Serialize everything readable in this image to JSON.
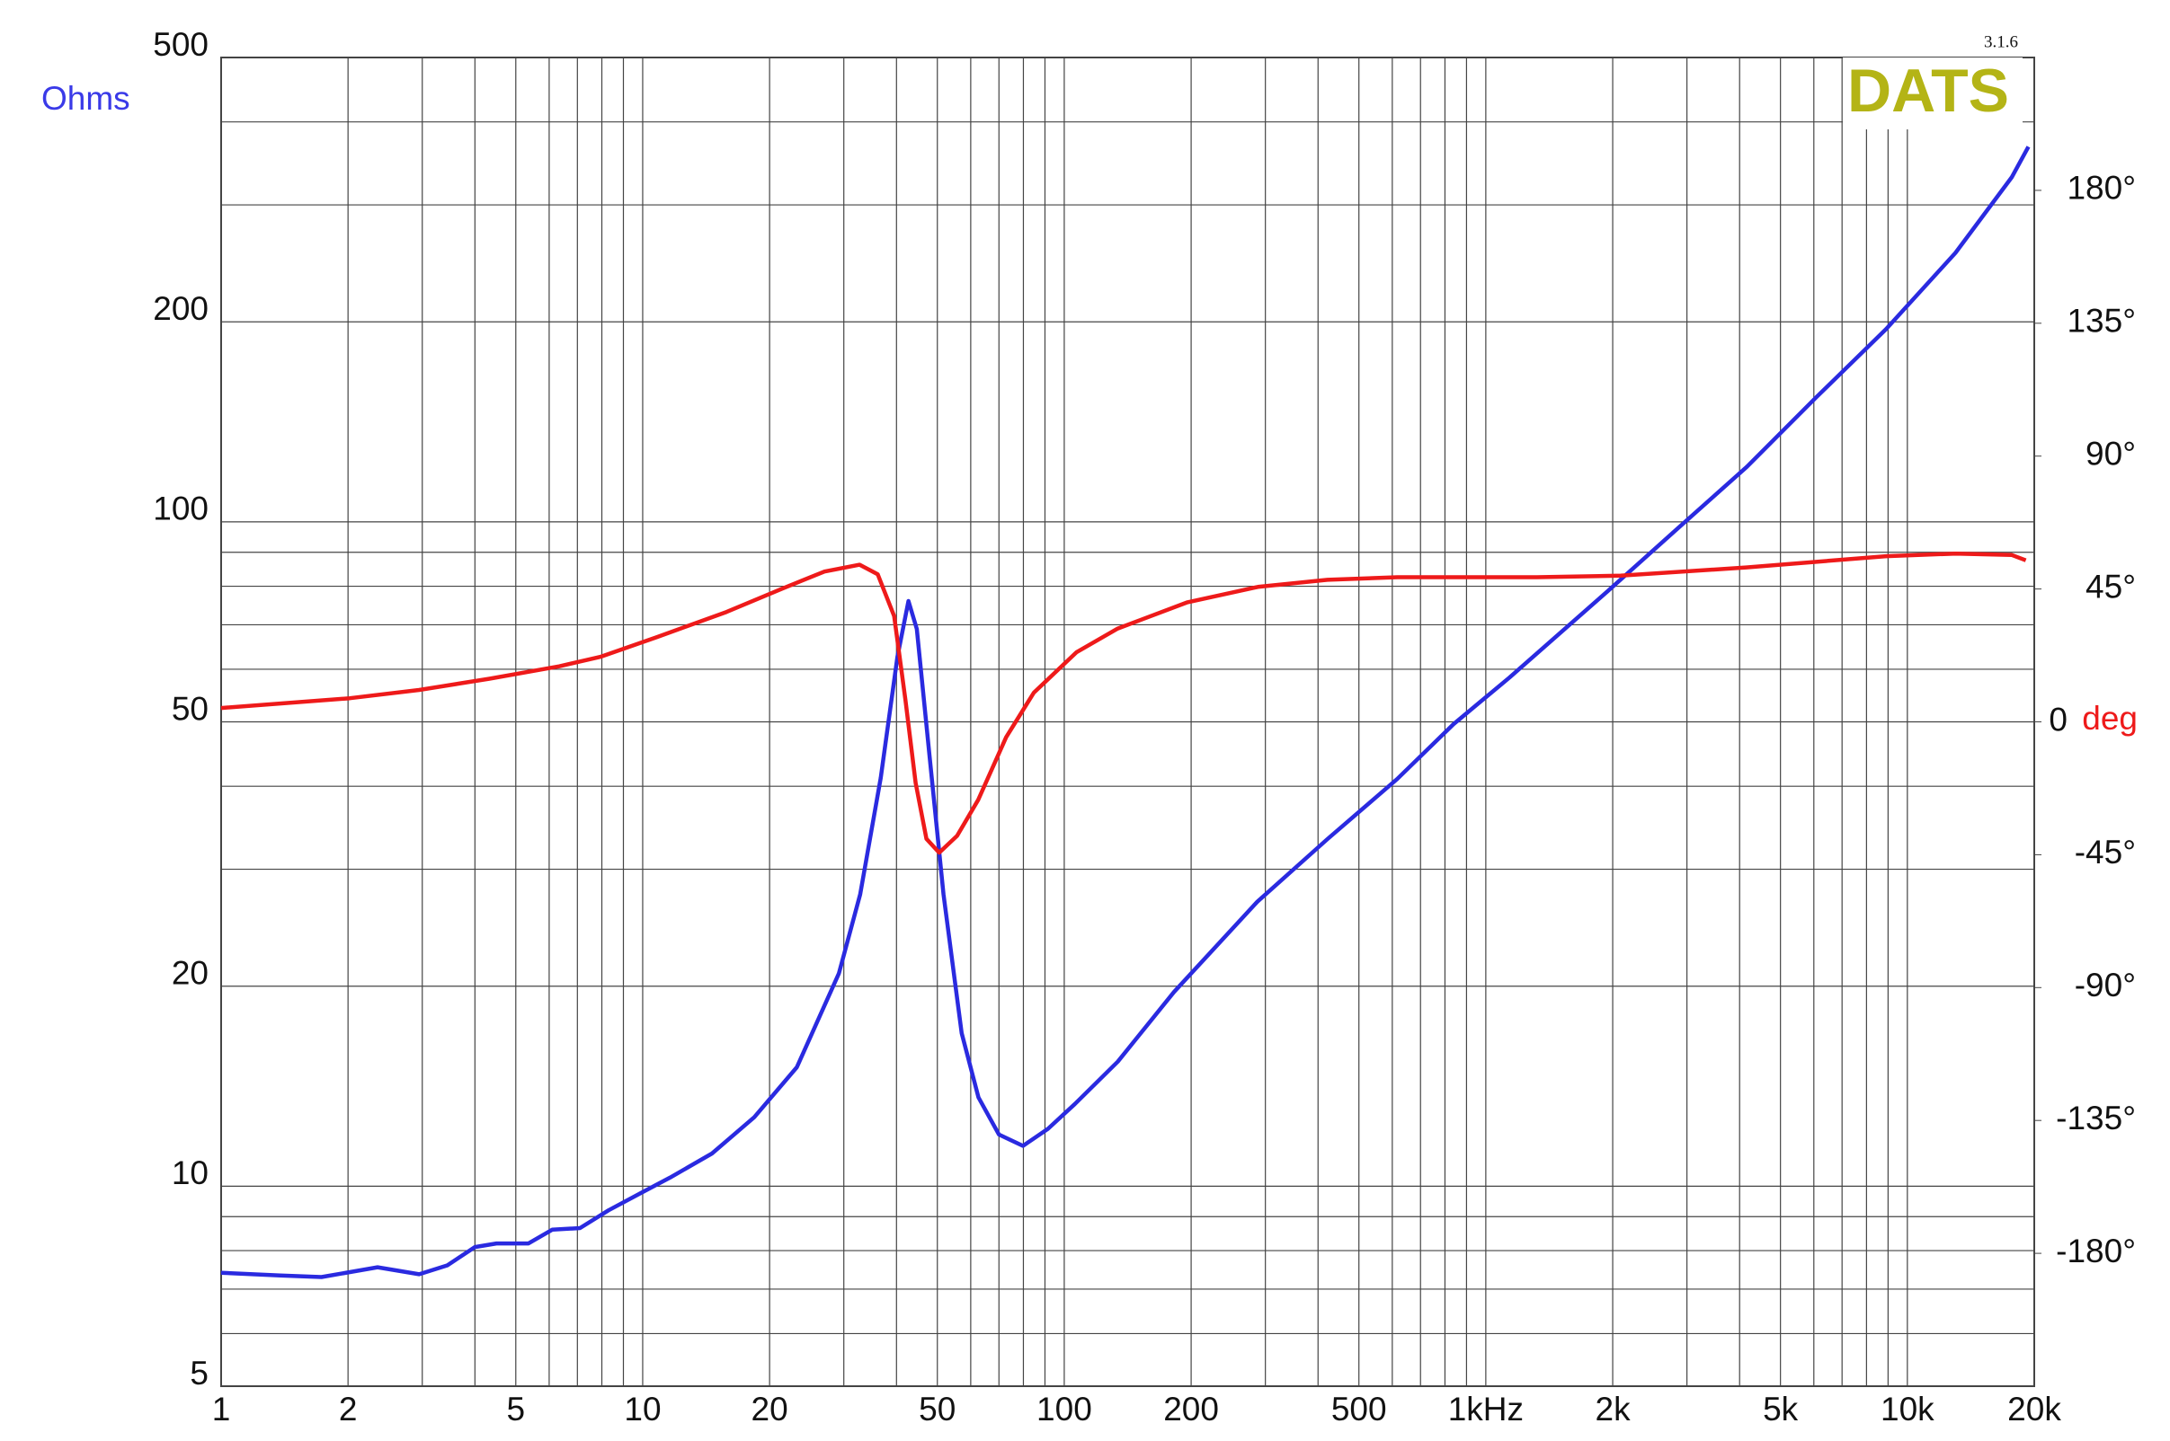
{
  "chart_data": {
    "type": "line",
    "version": "3.1.6",
    "logo_text": "DATS",
    "ylabel": "Ohms",
    "y2label": "deg",
    "xscale": "log",
    "yscale": "log",
    "grid": true,
    "xlim": [
      1,
      20000
    ],
    "ylim": [
      5,
      500
    ],
    "y2lim": [
      -225,
      225
    ],
    "xticks": [
      1,
      2,
      5,
      10,
      20,
      50,
      100,
      200,
      500,
      {
        "value": 1000,
        "label": "1kHz"
      },
      {
        "value": 2000,
        "label": "2k"
      },
      {
        "value": 5000,
        "label": "5k"
      },
      {
        "value": 10000,
        "label": "10k"
      },
      {
        "value": 20000,
        "label": "20k"
      }
    ],
    "xminorticks": [
      3,
      4,
      6,
      7,
      8,
      9,
      30,
      40,
      60,
      70,
      80,
      90,
      300,
      400,
      600,
      700,
      800,
      900,
      3000,
      4000,
      6000,
      7000,
      8000,
      9000
    ],
    "yticks": [
      5,
      10,
      20,
      50,
      100,
      200,
      500
    ],
    "yminorticks": [
      6,
      7,
      8,
      9,
      30,
      40,
      60,
      70,
      80,
      90,
      300,
      400
    ],
    "y2ticks": [
      {
        "value": 180,
        "label": "180°"
      },
      {
        "value": 135,
        "label": "135°"
      },
      {
        "value": 90,
        "label": "90°"
      },
      {
        "value": 45,
        "label": "45°"
      },
      0,
      {
        "value": -45,
        "label": "-45°"
      },
      {
        "value": -90,
        "label": "-90°"
      },
      {
        "value": -135,
        "label": "-135°"
      },
      {
        "value": -180,
        "label": "-180°"
      }
    ],
    "series": [
      {
        "color": "#2a2ae0",
        "x": [
          1,
          1.38,
          1.73,
          2.35,
          2.95,
          3.44,
          4.0,
          4.5,
          5.36,
          6.1,
          7.1,
          8.3,
          10,
          11.6,
          14.6,
          18.4,
          23.2,
          29.2,
          32.8,
          36.7,
          40.2,
          42.7,
          44.7,
          47.9,
          51.7,
          57.1,
          62.6,
          70,
          79.8,
          91.5,
          106,
          134,
          182,
          287,
          421,
          616,
          838,
          1138,
          1944,
          2845,
          4160,
          6080,
          8900,
          13000,
          17680,
          19370
        ],
        "values": [
          7.41,
          7.34,
          7.3,
          7.55,
          7.37,
          7.6,
          8.1,
          8.2,
          8.2,
          8.6,
          8.65,
          9.2,
          9.8,
          10.3,
          11.2,
          12.7,
          15.1,
          20.9,
          27.5,
          41.2,
          62.6,
          76,
          69,
          44.5,
          27.5,
          17,
          13.6,
          11.96,
          11.5,
          12.2,
          13.3,
          15.4,
          19.6,
          26.8,
          33.3,
          41,
          49.6,
          58.3,
          78.6,
          97.6,
          121,
          154,
          195,
          254,
          330,
          367
        ]
      },
      {
        "color": "#ee1a1a",
        "axis": "y2",
        "x": [
          1,
          2.02,
          2.95,
          4.33,
          6.34,
          7.97,
          10.8,
          15.8,
          21.5,
          27,
          32.7,
          36.1,
          39.5,
          42,
          44.4,
          47.1,
          50.5,
          55.7,
          62.5,
          72.8,
          84.7,
          107,
          134,
          196,
          288,
          421,
          617,
          1321,
          2089,
          4150,
          8910,
          13030,
          17700,
          19100
        ],
        "values": [
          4.7,
          8,
          10.8,
          14.6,
          18.8,
          22.1,
          28.7,
          37.2,
          45.2,
          50.9,
          53.2,
          50,
          35.8,
          7.5,
          -20.7,
          -39.6,
          -44.3,
          -38.6,
          -26.4,
          -5.2,
          9.9,
          23.6,
          31.6,
          40.5,
          45.7,
          48.1,
          49,
          49,
          49.5,
          52.3,
          56.1,
          57,
          56.5,
          54.7
        ]
      }
    ]
  }
}
